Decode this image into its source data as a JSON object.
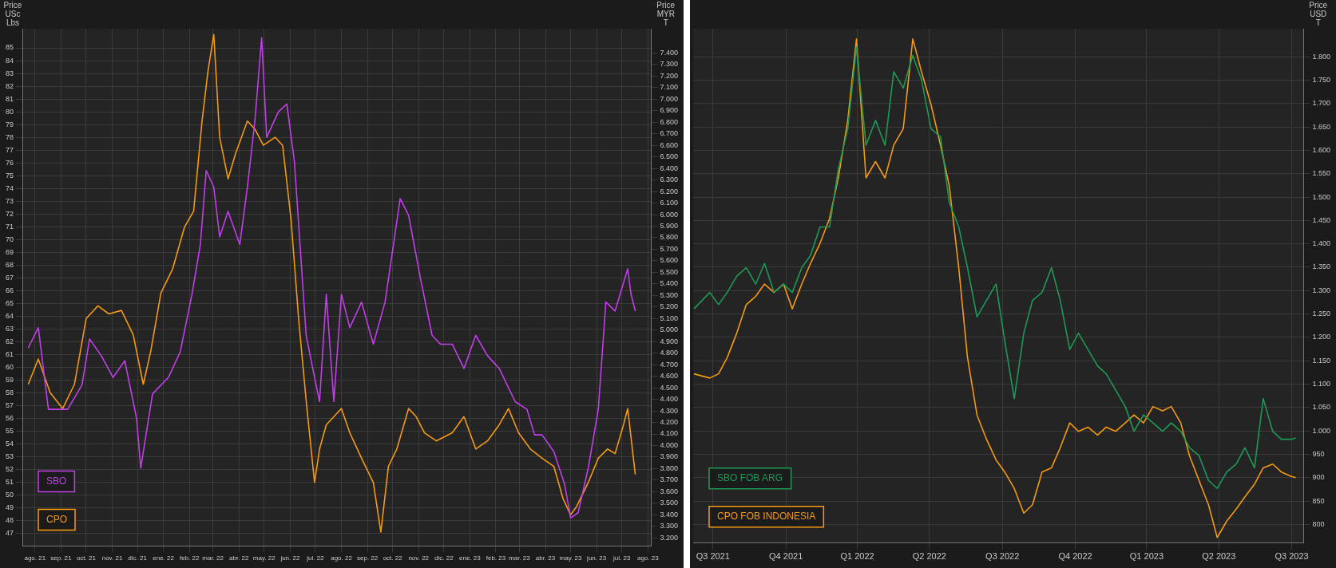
{
  "chart_data": [
    {
      "type": "line",
      "ylabel": "Price USc Lbs",
      "y2label": "Price MYR T",
      "grid": true,
      "legend": "bottom left",
      "xlim": [
        "2021-08-01",
        "2023-08-20"
      ],
      "xticks": [
        {
          "value": "2021-08-16",
          "label": "ago. 21"
        },
        {
          "value": "2021-09-16",
          "label": "sep. 21"
        },
        {
          "value": "2021-10-16",
          "label": "oct. 21"
        },
        {
          "value": "2021-11-16",
          "label": "nov. 21"
        },
        {
          "value": "2021-12-16",
          "label": "dic. 21"
        },
        {
          "value": "2022-01-16",
          "label": "ene. 22"
        },
        {
          "value": "2022-02-16",
          "label": "feb. 22"
        },
        {
          "value": "2022-03-16",
          "label": "mar. 22"
        },
        {
          "value": "2022-04-16",
          "label": "abr. 22"
        },
        {
          "value": "2022-05-16",
          "label": "may. 22"
        },
        {
          "value": "2022-06-16",
          "label": "jun. 22"
        },
        {
          "value": "2022-07-16",
          "label": "jul. 22"
        },
        {
          "value": "2022-08-16",
          "label": "ago. 22"
        },
        {
          "value": "2022-09-16",
          "label": "sep. 22"
        },
        {
          "value": "2022-10-16",
          "label": "oct. 22"
        },
        {
          "value": "2022-11-16",
          "label": "nov. 22"
        },
        {
          "value": "2022-12-16",
          "label": "dic. 22"
        },
        {
          "value": "2023-01-16",
          "label": "ene. 23"
        },
        {
          "value": "2023-02-16",
          "label": "feb. 23"
        },
        {
          "value": "2023-03-16",
          "label": "mar. 23"
        },
        {
          "value": "2023-04-16",
          "label": "abr. 23"
        },
        {
          "value": "2023-05-16",
          "label": "may. 23"
        },
        {
          "value": "2023-06-16",
          "label": "jun. 23"
        },
        {
          "value": "2023-07-16",
          "label": "jul. 23"
        },
        {
          "value": "2023-08-16",
          "label": "ago. 23"
        }
      ],
      "ylim": [
        46,
        86.5
      ],
      "yticks": [
        47,
        48,
        49,
        50,
        51,
        52,
        53,
        54,
        55,
        56,
        57,
        58,
        59,
        60,
        61,
        62,
        63,
        64,
        65,
        66,
        67,
        68,
        69,
        70,
        71,
        72,
        73,
        74,
        75,
        76,
        77,
        78,
        79,
        80,
        81,
        82,
        83,
        84,
        85
      ],
      "y2lim": [
        3130,
        7610
      ],
      "y2ticks": [
        {
          "value": 3200,
          "label": "3.200"
        },
        {
          "value": 3300,
          "label": "3.300"
        },
        {
          "value": 3400,
          "label": "3.400"
        },
        {
          "value": 3500,
          "label": "3.500"
        },
        {
          "value": 3600,
          "label": "3.600"
        },
        {
          "value": 3700,
          "label": "3.700"
        },
        {
          "value": 3800,
          "label": "3.800"
        },
        {
          "value": 3900,
          "label": "3.900"
        },
        {
          "value": 4000,
          "label": "4.000"
        },
        {
          "value": 4100,
          "label": "4.100"
        },
        {
          "value": 4200,
          "label": "4.200"
        },
        {
          "value": 4300,
          "label": "4.300"
        },
        {
          "value": 4400,
          "label": "4.400"
        },
        {
          "value": 4500,
          "label": "4.500"
        },
        {
          "value": 4600,
          "label": "4.600"
        },
        {
          "value": 4700,
          "label": "4.700"
        },
        {
          "value": 4800,
          "label": "4.800"
        },
        {
          "value": 4900,
          "label": "4.900"
        },
        {
          "value": 5000,
          "label": "5.000"
        },
        {
          "value": 5100,
          "label": "5.100"
        },
        {
          "value": 5200,
          "label": "5.200"
        },
        {
          "value": 5300,
          "label": "5.300"
        },
        {
          "value": 5400,
          "label": "5.400"
        },
        {
          "value": 5500,
          "label": "5.500"
        },
        {
          "value": 5600,
          "label": "5.600"
        },
        {
          "value": 5700,
          "label": "5.700"
        },
        {
          "value": 5800,
          "label": "5.800"
        },
        {
          "value": 5900,
          "label": "5.900"
        },
        {
          "value": 6000,
          "label": "6.000"
        },
        {
          "value": 6100,
          "label": "6.100"
        },
        {
          "value": 6200,
          "label": "6.200"
        },
        {
          "value": 6300,
          "label": "6.300"
        },
        {
          "value": 6400,
          "label": "6.400"
        },
        {
          "value": 6500,
          "label": "6.500"
        },
        {
          "value": 6600,
          "label": "6.600"
        },
        {
          "value": 6700,
          "label": "6.700"
        },
        {
          "value": 6800,
          "label": "6.800"
        },
        {
          "value": 6900,
          "label": "6.900"
        },
        {
          "value": 7000,
          "label": "7.000"
        },
        {
          "value": 7100,
          "label": "7.100"
        },
        {
          "value": 7200,
          "label": "7.200"
        },
        {
          "value": 7300,
          "label": "7.300"
        },
        {
          "value": 7400,
          "label": "7.400"
        }
      ],
      "series": [
        {
          "name": "SBO",
          "color": "#c13fe8",
          "x": [
            "2021-08-08",
            "2021-08-20",
            "2021-09-01",
            "2021-09-24",
            "2021-10-11",
            "2021-10-20",
            "2021-11-03",
            "2021-11-17",
            "2021-12-01",
            "2021-12-15",
            "2021-12-20",
            "2022-01-03",
            "2022-01-22",
            "2022-02-05",
            "2022-02-19",
            "2022-03-01",
            "2022-03-08",
            "2022-03-17",
            "2022-03-24",
            "2022-04-03",
            "2022-04-17",
            "2022-04-26",
            "2022-05-05",
            "2022-05-13",
            "2022-05-19",
            "2022-06-02",
            "2022-06-12",
            "2022-06-21",
            "2022-07-05",
            "2022-07-15",
            "2022-07-21",
            "2022-07-29",
            "2022-08-07",
            "2022-08-16",
            "2022-08-26",
            "2022-09-09",
            "2022-09-23",
            "2022-10-07",
            "2022-10-25",
            "2022-11-04",
            "2022-11-18",
            "2022-12-02",
            "2022-12-12",
            "2022-12-26",
            "2023-01-09",
            "2023-01-23",
            "2023-02-06",
            "2023-02-20",
            "2023-03-11",
            "2023-03-25",
            "2023-04-03",
            "2023-04-12",
            "2023-04-26",
            "2023-05-09",
            "2023-05-16",
            "2023-05-25",
            "2023-06-06",
            "2023-06-18",
            "2023-06-27",
            "2023-07-08",
            "2023-07-23",
            "2023-07-27",
            "2023-08-01"
          ],
          "values": [
            61.5,
            63.1,
            56.7,
            56.7,
            58.6,
            62.2,
            60.9,
            59.2,
            60.5,
            56.0,
            52.1,
            57.9,
            59.2,
            61.2,
            65.7,
            69.6,
            75.4,
            74.1,
            70.2,
            72.2,
            69.6,
            74.1,
            79.3,
            85.8,
            78.0,
            80.0,
            80.6,
            76.1,
            62.5,
            59.2,
            57.3,
            65.7,
            57.3,
            65.7,
            63.1,
            65.1,
            61.8,
            65.1,
            73.2,
            71.9,
            67.0,
            62.5,
            61.8,
            61.8,
            59.9,
            62.5,
            60.9,
            59.9,
            57.3,
            56.7,
            54.7,
            54.7,
            53.4,
            50.8,
            48.2,
            48.6,
            52.1,
            56.7,
            65.1,
            64.4,
            67.7,
            65.7,
            64.4
          ]
        },
        {
          "name": "CPO",
          "color": "#f59a0c",
          "axis": "y2",
          "x": [
            "2021-08-08",
            "2021-08-20",
            "2021-09-03",
            "2021-09-18",
            "2021-10-02",
            "2021-10-16",
            "2021-10-30",
            "2021-11-12",
            "2021-11-27",
            "2021-12-11",
            "2021-12-23",
            "2022-01-01",
            "2022-01-13",
            "2022-01-27",
            "2022-02-10",
            "2022-02-21",
            "2022-03-03",
            "2022-03-10",
            "2022-03-17",
            "2022-03-24",
            "2022-04-03",
            "2022-04-12",
            "2022-04-26",
            "2022-05-05",
            "2022-05-15",
            "2022-05-29",
            "2022-06-07",
            "2022-06-17",
            "2022-06-26",
            "2022-07-05",
            "2022-07-15",
            "2022-07-21",
            "2022-07-29",
            "2022-08-07",
            "2022-08-16",
            "2022-08-26",
            "2022-09-09",
            "2022-09-23",
            "2022-10-02",
            "2022-10-11",
            "2022-10-21",
            "2022-11-04",
            "2022-11-13",
            "2022-11-23",
            "2022-12-07",
            "2022-12-26",
            "2023-01-09",
            "2023-01-23",
            "2023-02-06",
            "2023-02-20",
            "2023-03-03",
            "2023-03-15",
            "2023-03-29",
            "2023-04-12",
            "2023-04-26",
            "2023-05-07",
            "2023-05-16",
            "2023-05-23",
            "2023-06-06",
            "2023-06-18",
            "2023-06-29",
            "2023-07-08",
            "2023-07-18",
            "2023-07-23",
            "2023-08-01"
          ],
          "values": [
            4530,
            4750,
            4460,
            4320,
            4530,
            5100,
            5210,
            5140,
            5170,
            4960,
            4530,
            4820,
            5320,
            5530,
            5890,
            6030,
            6810,
            7240,
            7560,
            6670,
            6310,
            6530,
            6810,
            6740,
            6600,
            6670,
            6600,
            5960,
            5100,
            4390,
            3680,
            3970,
            4180,
            4250,
            4320,
            4110,
            3890,
            3680,
            3250,
            3820,
            3970,
            4320,
            4250,
            4110,
            4040,
            4110,
            4250,
            3970,
            4040,
            4180,
            4320,
            4110,
            3970,
            3890,
            3820,
            3540,
            3400,
            3470,
            3680,
            3890,
            3970,
            3930,
            4180,
            4320,
            3750
          ]
        }
      ]
    },
    {
      "type": "line",
      "y2label": "Price USD T",
      "grid": true,
      "legend": "bottom left",
      "xlim": [
        "2021-07-22",
        "2023-08-31"
      ],
      "xticks": [
        {
          "value": "2021-08-16",
          "label": "Q3 2021"
        },
        {
          "value": "2021-11-16",
          "label": "Q4 2021"
        },
        {
          "value": "2022-02-14",
          "label": "Q1 2022"
        },
        {
          "value": "2022-05-16",
          "label": "Q2 2022"
        },
        {
          "value": "2022-08-16",
          "label": "Q3 2022"
        },
        {
          "value": "2022-11-16",
          "label": "Q4 2022"
        },
        {
          "value": "2023-02-14",
          "label": "Q1 2023"
        },
        {
          "value": "2023-05-16",
          "label": "Q2 2023"
        },
        {
          "value": "2023-08-16",
          "label": "Q3 2023"
        }
      ],
      "y2lim": [
        760,
        1860
      ],
      "y2ticks": [
        800,
        850,
        900,
        950,
        {
          "value": 1000,
          "label": "1.000"
        },
        {
          "value": 1050,
          "label": "1.050"
        },
        {
          "value": 1100,
          "label": "1.100"
        },
        {
          "value": 1150,
          "label": "1.150"
        },
        {
          "value": 1200,
          "label": "1.200"
        },
        {
          "value": 1250,
          "label": "1.250"
        },
        {
          "value": 1300,
          "label": "1.300"
        },
        {
          "value": 1350,
          "label": "1.350"
        },
        {
          "value": 1400,
          "label": "1.400"
        },
        {
          "value": 1450,
          "label": "1.450"
        },
        {
          "value": 1500,
          "label": "1.500"
        },
        {
          "value": 1550,
          "label": "1.550"
        },
        {
          "value": 1600,
          "label": "1.600"
        },
        {
          "value": 1650,
          "label": "1.650"
        },
        {
          "value": 1700,
          "label": "1.700"
        },
        {
          "value": 1750,
          "label": "1.750"
        },
        {
          "value": 1800,
          "label": "1.800"
        }
      ],
      "x": [
        "2021-07-23",
        "2021-08-12",
        "2021-08-23",
        "2021-09-03",
        "2021-09-15",
        "2021-09-27",
        "2021-10-09",
        "2021-10-20",
        "2021-11-01",
        "2021-11-13",
        "2021-11-24",
        "2021-12-06",
        "2021-12-17",
        "2021-12-29",
        "2022-01-10",
        "2022-01-21",
        "2022-02-02",
        "2022-02-13",
        "2022-02-25",
        "2022-03-09",
        "2022-03-21",
        "2022-04-01",
        "2022-04-13",
        "2022-04-25",
        "2022-05-06",
        "2022-05-18",
        "2022-05-30",
        "2022-06-10",
        "2022-06-22",
        "2022-07-03",
        "2022-07-15",
        "2022-07-27",
        "2022-08-08",
        "2022-08-19",
        "2022-08-31",
        "2022-09-12",
        "2022-09-23",
        "2022-10-05",
        "2022-10-17",
        "2022-10-28",
        "2022-11-09",
        "2022-11-20",
        "2022-12-02",
        "2022-12-14",
        "2022-12-25",
        "2023-01-06",
        "2023-01-18",
        "2023-01-29",
        "2023-02-10",
        "2023-02-22",
        "2023-03-06",
        "2023-03-17",
        "2023-03-29",
        "2023-04-09",
        "2023-04-21",
        "2023-05-03",
        "2023-05-14",
        "2023-05-26",
        "2023-06-07",
        "2023-06-18",
        "2023-06-30",
        "2023-07-11",
        "2023-07-23",
        "2023-08-03",
        "2023-08-15",
        "2023-08-21"
      ],
      "series": [
        {
          "name": "SBO FOB ARG",
          "color": "#1c9a55",
          "axis": "y2",
          "values": [
            1261,
            1296,
            1270,
            1296,
            1331,
            1349,
            1314,
            1358,
            1296,
            1314,
            1296,
            1349,
            1375,
            1436,
            1436,
            1559,
            1646,
            1821,
            1611,
            1664,
            1611,
            1768,
            1733,
            1803,
            1751,
            1646,
            1629,
            1489,
            1436,
            1349,
            1244,
            1279,
            1314,
            1192,
            1069,
            1209,
            1279,
            1296,
            1349,
            1279,
            1174,
            1209,
            1174,
            1139,
            1122,
            1087,
            1052,
            999,
            1034,
            1017,
            999,
            1017,
            999,
            964,
            947,
            894,
            877,
            912,
            929,
            964,
            921,
            1069,
            999,
            982,
            982,
            985
          ]
        },
        {
          "name": "CPO FOB INDONESIA",
          "color": "#f59a0c",
          "axis": "y2",
          "values": [
            1122,
            1113,
            1122,
            1157,
            1209,
            1270,
            1288,
            1314,
            1296,
            1314,
            1261,
            1314,
            1358,
            1401,
            1454,
            1540,
            1664,
            1838,
            1541,
            1576,
            1541,
            1611,
            1646,
            1838,
            1768,
            1698,
            1611,
            1524,
            1349,
            1157,
            1034,
            982,
            938,
            912,
            877,
            824,
            842,
            912,
            921,
            964,
            1017,
            999,
            1008,
            991,
            1008,
            999,
            1017,
            1034,
            1017,
            1052,
            1043,
            1052,
            1017,
            947,
            894,
            842,
            772,
            807,
            833,
            859,
            886,
            921,
            929,
            912,
            903,
            900
          ]
        }
      ]
    }
  ]
}
